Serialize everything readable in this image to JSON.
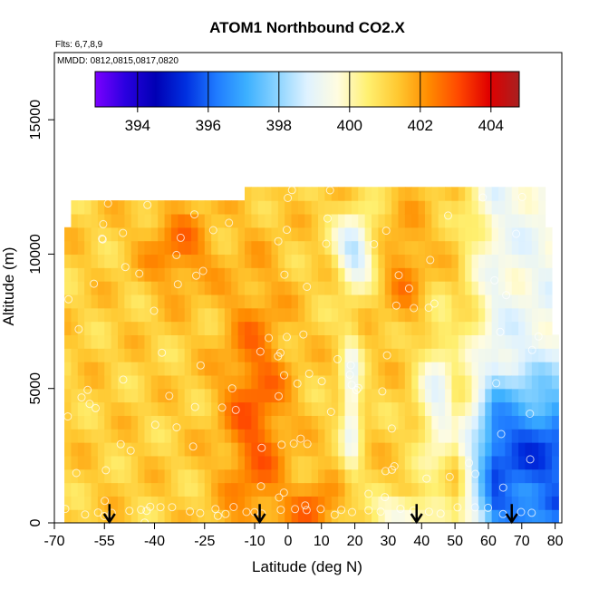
{
  "chart_data": {
    "type": "heatmap",
    "title": "ATOM1 Northbound CO2.X",
    "annotations": [
      "Flts: 6,7,8,9",
      "MMDD: 0812,0815,0817,0820"
    ],
    "xlabel": "Latitude (deg N)",
    "ylabel": "Altitude (m)",
    "xlim": [
      -70,
      82
    ],
    "ylim": [
      0,
      17500
    ],
    "xticks": [
      -70,
      -55,
      -40,
      -25,
      -10,
      0,
      10,
      20,
      30,
      40,
      50,
      60,
      70,
      80
    ],
    "yticks": [
      0,
      5000,
      10000,
      15000
    ],
    "colorbar": {
      "range": [
        392.8,
        404.8
      ],
      "ticks": [
        394,
        396,
        398,
        400,
        402,
        404
      ],
      "colors": [
        "#7b00ff",
        "#2a00e0",
        "#0000b4",
        "#0030e0",
        "#1f7bff",
        "#3cb0ff",
        "#8ad3ff",
        "#dff2ff",
        "#fffce0",
        "#fff070",
        "#ffc830",
        "#ff8c00",
        "#ff4800",
        "#e00000",
        "#a82020"
      ]
    },
    "grid": false,
    "flight_markers_lat": [
      -53.5,
      -8.5,
      38.5,
      67
    ]
  }
}
